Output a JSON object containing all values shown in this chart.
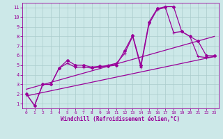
{
  "xlabel": "Windchill (Refroidissement éolien,°C)",
  "bg_color": "#cce8e8",
  "grid_color": "#aacccc",
  "line_color": "#990099",
  "xlim": [
    -0.5,
    23.5
  ],
  "ylim": [
    0.5,
    11.5
  ],
  "xticks": [
    0,
    1,
    2,
    3,
    4,
    5,
    6,
    7,
    8,
    9,
    10,
    11,
    12,
    13,
    14,
    15,
    16,
    17,
    18,
    19,
    20,
    21,
    22,
    23
  ],
  "yticks": [
    1,
    2,
    3,
    4,
    5,
    6,
    7,
    8,
    9,
    10,
    11
  ],
  "series1_x": [
    0,
    1,
    2,
    3,
    4,
    5,
    6,
    7,
    8,
    9,
    10,
    11,
    12,
    13,
    14,
    15,
    16,
    17,
    18,
    19,
    20,
    21,
    22,
    23
  ],
  "series1_y": [
    2.0,
    0.8,
    3.0,
    3.0,
    4.7,
    5.5,
    5.0,
    5.0,
    4.8,
    4.9,
    4.9,
    5.0,
    6.5,
    8.1,
    5.0,
    9.5,
    10.9,
    11.1,
    11.1,
    8.5,
    8.0,
    7.5,
    6.0,
    6.0
  ],
  "series2_x": [
    0,
    1,
    2,
    3,
    4,
    5,
    6,
    7,
    8,
    9,
    10,
    11,
    12,
    13,
    14,
    15,
    16,
    17,
    18,
    19,
    20,
    21,
    22,
    23
  ],
  "series2_y": [
    2.0,
    0.8,
    3.0,
    3.0,
    4.7,
    5.2,
    4.8,
    4.8,
    4.7,
    4.8,
    5.0,
    5.2,
    6.2,
    8.0,
    4.8,
    9.3,
    10.8,
    11.0,
    8.4,
    8.5,
    8.0,
    5.9,
    5.8,
    5.9
  ],
  "series3_x": [
    0,
    23
  ],
  "series3_y": [
    2.5,
    8.0
  ],
  "series4_x": [
    0,
    23
  ],
  "series4_y": [
    1.8,
    5.9
  ]
}
